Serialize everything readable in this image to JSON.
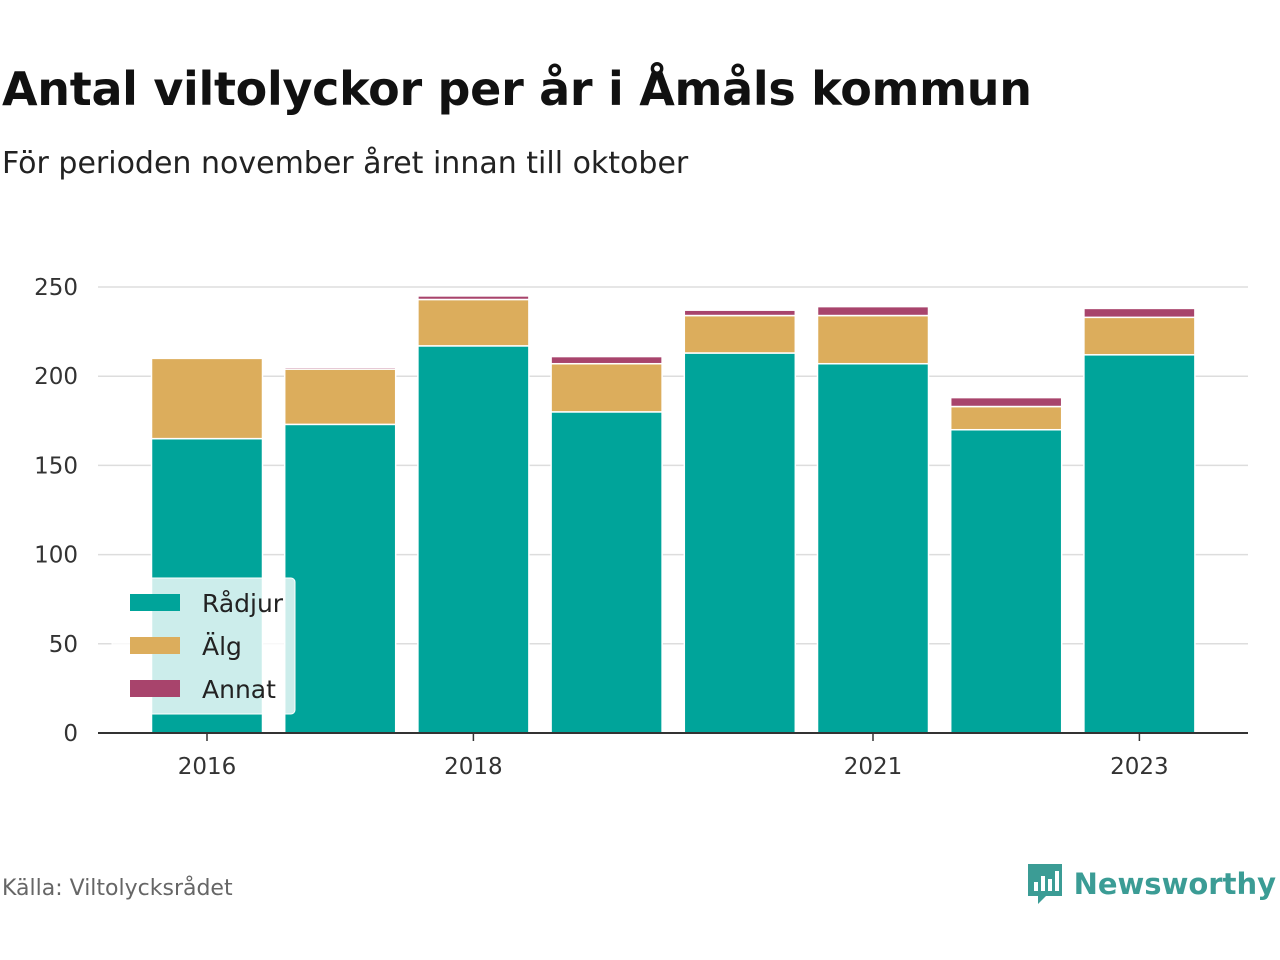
{
  "title": "Antal viltolyckor per år i Åmåls kommun",
  "subtitle": "För perioden november året innan till oktober",
  "source": "Källa: Viltolycksrådet",
  "brand": "Newsworthy",
  "colors": {
    "radjur": "#00a49a",
    "alg": "#dcad5c",
    "annat": "#a8446c",
    "brand": "#3b9c95"
  },
  "chart_data": {
    "type": "bar",
    "stacked": true,
    "categories": [
      "2016",
      "2017",
      "2018",
      "2019",
      "2020",
      "2021",
      "2022",
      "2023"
    ],
    "tick_labels": [
      "2016",
      "",
      "2018",
      "",
      "",
      "2021",
      "",
      "2023"
    ],
    "series": [
      {
        "name": "Rådjur",
        "color": "#00a49a",
        "values": [
          165,
          173,
          217,
          180,
          213,
          207,
          170,
          212
        ]
      },
      {
        "name": "Älg",
        "color": "#dcad5c",
        "values": [
          45,
          31,
          26,
          27,
          21,
          27,
          13,
          21
        ]
      },
      {
        "name": "Annat",
        "color": "#a8446c",
        "values": [
          0,
          1,
          2,
          4,
          3,
          5,
          5,
          5
        ]
      }
    ],
    "ylim": [
      0,
      250
    ],
    "yticks": [
      0,
      50,
      100,
      150,
      200,
      250
    ],
    "grid": true,
    "legend": "bottom-left",
    "xlabel": "",
    "ylabel": ""
  }
}
